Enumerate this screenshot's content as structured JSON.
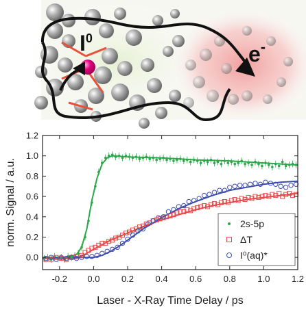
{
  "illustration": {
    "ion_label": "I",
    "ion_superscript": "0",
    "electron_label": "e",
    "electron_superscript": "-",
    "colors": {
      "ion": "#e5007e",
      "bond": "#e8503a",
      "water": "#8a8a8a",
      "electron_glow": "#e88a8a",
      "arrow": "#111111"
    }
  },
  "chart_data": {
    "type": "scatter",
    "xlabel": "Laser - X-Ray Time Delay / ps",
    "ylabel": "norm. Signal / a.u.",
    "xlim": [
      -0.3,
      1.2
    ],
    "ylim": [
      -0.12,
      1.2
    ],
    "xticks": [
      "-0.2",
      "0.0",
      "0.2",
      "0.4",
      "0.6",
      "0.8",
      "1.0",
      "1.2"
    ],
    "xtick_values": [
      -0.2,
      0.0,
      0.2,
      0.4,
      0.6,
      0.8,
      1.0,
      1.2
    ],
    "yticks": [
      "0.0",
      "0.2",
      "0.4",
      "0.6",
      "0.8",
      "1.0",
      "1.2"
    ],
    "ytick_values": [
      0.0,
      0.2,
      0.4,
      0.6,
      0.8,
      1.0,
      1.2
    ],
    "grid": false,
    "legend_position": "bottom-right",
    "series": [
      {
        "name": "2s-5p",
        "marker": "dot",
        "color": "#2aa84a",
        "points": [
          [
            -0.29,
            -0.01
          ],
          [
            -0.27,
            0.0
          ],
          [
            -0.25,
            -0.02
          ],
          [
            -0.23,
            0.01
          ],
          [
            -0.21,
            -0.01
          ],
          [
            -0.19,
            0.0
          ],
          [
            -0.17,
            -0.02
          ],
          [
            -0.15,
            0.01
          ],
          [
            -0.13,
            0.0
          ],
          [
            -0.11,
            0.02
          ],
          [
            -0.09,
            0.04
          ],
          [
            -0.07,
            0.1
          ],
          [
            -0.05,
            0.2
          ],
          [
            -0.03,
            0.36
          ],
          [
            -0.01,
            0.54
          ],
          [
            0.01,
            0.7
          ],
          [
            0.03,
            0.84
          ],
          [
            0.05,
            0.93
          ],
          [
            0.07,
            0.98
          ],
          [
            0.09,
            1.0
          ],
          [
            0.11,
            1.01
          ],
          [
            0.13,
            0.99
          ],
          [
            0.15,
            1.0
          ],
          [
            0.17,
            0.98
          ],
          [
            0.19,
            1.0
          ],
          [
            0.21,
            0.99
          ],
          [
            0.23,
            0.98
          ],
          [
            0.25,
            0.99
          ],
          [
            0.27,
            0.97
          ],
          [
            0.29,
            0.98
          ],
          [
            0.31,
            0.99
          ],
          [
            0.33,
            0.97
          ],
          [
            0.35,
            0.98
          ],
          [
            0.37,
            0.96
          ],
          [
            0.39,
            0.97
          ],
          [
            0.41,
            0.98
          ],
          [
            0.43,
            0.96
          ],
          [
            0.45,
            0.97
          ],
          [
            0.47,
            0.95
          ],
          [
            0.49,
            0.96
          ],
          [
            0.51,
            0.97
          ],
          [
            0.53,
            0.95
          ],
          [
            0.55,
            0.96
          ],
          [
            0.57,
            0.94
          ],
          [
            0.59,
            0.96
          ],
          [
            0.61,
            0.95
          ],
          [
            0.63,
            0.93
          ],
          [
            0.65,
            0.95
          ],
          [
            0.67,
            0.94
          ],
          [
            0.69,
            0.96
          ],
          [
            0.71,
            0.93
          ],
          [
            0.73,
            0.94
          ],
          [
            0.75,
            0.92
          ],
          [
            0.77,
            0.95
          ],
          [
            0.79,
            0.93
          ],
          [
            0.81,
            0.94
          ],
          [
            0.83,
            0.92
          ],
          [
            0.85,
            0.93
          ],
          [
            0.87,
            0.95
          ],
          [
            0.89,
            0.92
          ],
          [
            0.91,
            0.93
          ],
          [
            0.93,
            0.91
          ],
          [
            0.95,
            0.94
          ],
          [
            0.97,
            0.92
          ],
          [
            0.99,
            0.9
          ],
          [
            1.01,
            0.93
          ],
          [
            1.03,
            0.91
          ],
          [
            1.05,
            0.89
          ],
          [
            1.07,
            0.92
          ],
          [
            1.09,
            0.9
          ],
          [
            1.11,
            0.94
          ],
          [
            1.13,
            0.9
          ],
          [
            1.15,
            0.91
          ],
          [
            1.17,
            0.92
          ],
          [
            1.19,
            0.91
          ]
        ],
        "fit": [
          [
            -0.3,
            0.0
          ],
          [
            -0.15,
            0.0
          ],
          [
            -0.1,
            0.03
          ],
          [
            -0.07,
            0.1
          ],
          [
            -0.04,
            0.28
          ],
          [
            -0.01,
            0.56
          ],
          [
            0.02,
            0.78
          ],
          [
            0.05,
            0.92
          ],
          [
            0.08,
            0.98
          ],
          [
            0.11,
            1.0
          ],
          [
            0.2,
            0.99
          ],
          [
            0.4,
            0.98
          ],
          [
            0.6,
            0.96
          ],
          [
            0.8,
            0.95
          ],
          [
            1.0,
            0.93
          ],
          [
            1.2,
            0.91
          ]
        ]
      },
      {
        "name": "ΔT",
        "marker": "square",
        "color": "#e84a4a",
        "points": [
          [
            -0.28,
            -0.02
          ],
          [
            -0.25,
            -0.02
          ],
          [
            -0.22,
            0.0
          ],
          [
            -0.19,
            -0.01
          ],
          [
            -0.16,
            -0.02
          ],
          [
            -0.13,
            0.0
          ],
          [
            -0.1,
            0.01
          ],
          [
            -0.07,
            0.02
          ],
          [
            -0.05,
            0.05
          ],
          [
            -0.03,
            0.07
          ],
          [
            -0.01,
            0.09
          ],
          [
            0.01,
            0.1
          ],
          [
            0.03,
            0.12
          ],
          [
            0.05,
            0.14
          ],
          [
            0.07,
            0.14
          ],
          [
            0.09,
            0.16
          ],
          [
            0.11,
            0.17
          ],
          [
            0.13,
            0.19
          ],
          [
            0.15,
            0.2
          ],
          [
            0.17,
            0.22
          ],
          [
            0.19,
            0.24
          ],
          [
            0.21,
            0.25
          ],
          [
            0.23,
            0.27
          ],
          [
            0.25,
            0.28
          ],
          [
            0.27,
            0.3
          ],
          [
            0.29,
            0.31
          ],
          [
            0.31,
            0.33
          ],
          [
            0.33,
            0.34
          ],
          [
            0.35,
            0.36
          ],
          [
            0.37,
            0.37
          ],
          [
            0.39,
            0.38
          ],
          [
            0.41,
            0.39
          ],
          [
            0.43,
            0.4
          ],
          [
            0.45,
            0.41
          ],
          [
            0.47,
            0.42
          ],
          [
            0.49,
            0.44
          ],
          [
            0.51,
            0.45
          ],
          [
            0.53,
            0.45
          ],
          [
            0.55,
            0.47
          ],
          [
            0.57,
            0.46
          ],
          [
            0.59,
            0.48
          ],
          [
            0.61,
            0.49
          ],
          [
            0.63,
            0.5
          ],
          [
            0.65,
            0.51
          ],
          [
            0.67,
            0.5
          ],
          [
            0.69,
            0.52
          ],
          [
            0.71,
            0.53
          ],
          [
            0.73,
            0.52
          ],
          [
            0.75,
            0.54
          ],
          [
            0.77,
            0.55
          ],
          [
            0.79,
            0.54
          ],
          [
            0.81,
            0.56
          ],
          [
            0.83,
            0.57
          ],
          [
            0.85,
            0.56
          ],
          [
            0.87,
            0.58
          ],
          [
            0.89,
            0.57
          ],
          [
            0.91,
            0.59
          ],
          [
            0.93,
            0.58
          ],
          [
            0.95,
            0.6
          ],
          [
            0.97,
            0.59
          ],
          [
            0.99,
            0.6
          ],
          [
            1.01,
            0.61
          ],
          [
            1.03,
            0.6
          ],
          [
            1.05,
            0.62
          ],
          [
            1.07,
            0.61
          ],
          [
            1.09,
            0.63
          ],
          [
            1.11,
            0.6
          ],
          [
            1.13,
            0.62
          ],
          [
            1.15,
            0.63
          ],
          [
            1.17,
            0.61
          ],
          [
            1.19,
            0.62
          ]
        ],
        "fit": [
          [
            -0.3,
            -0.01
          ],
          [
            -0.1,
            -0.01
          ],
          [
            -0.05,
            0.03
          ],
          [
            0.0,
            0.08
          ],
          [
            0.1,
            0.17
          ],
          [
            0.2,
            0.24
          ],
          [
            0.3,
            0.31
          ],
          [
            0.4,
            0.37
          ],
          [
            0.5,
            0.42
          ],
          [
            0.6,
            0.47
          ],
          [
            0.7,
            0.51
          ],
          [
            0.8,
            0.54
          ],
          [
            0.9,
            0.57
          ],
          [
            1.0,
            0.59
          ],
          [
            1.1,
            0.61
          ],
          [
            1.2,
            0.63
          ]
        ]
      },
      {
        "name": "I⁰(aq)*",
        "marker": "circle",
        "color": "#3b4bb0",
        "points": [
          [
            -0.28,
            -0.01
          ],
          [
            -0.25,
            0.0
          ],
          [
            -0.22,
            -0.02
          ],
          [
            -0.19,
            0.0
          ],
          [
            -0.16,
            -0.01
          ],
          [
            -0.13,
            0.0
          ],
          [
            -0.1,
            -0.01
          ],
          [
            -0.07,
            0.0
          ],
          [
            -0.04,
            0.01
          ],
          [
            -0.01,
            0.01
          ],
          [
            0.02,
            0.02
          ],
          [
            0.05,
            0.04
          ],
          [
            0.08,
            0.06
          ],
          [
            0.11,
            0.08
          ],
          [
            0.14,
            0.1
          ],
          [
            0.17,
            0.14
          ],
          [
            0.2,
            0.18
          ],
          [
            0.23,
            0.22
          ],
          [
            0.26,
            0.26
          ],
          [
            0.29,
            0.28
          ],
          [
            0.32,
            0.33
          ],
          [
            0.35,
            0.36
          ],
          [
            0.38,
            0.39
          ],
          [
            0.41,
            0.4
          ],
          [
            0.44,
            0.45
          ],
          [
            0.47,
            0.47
          ],
          [
            0.5,
            0.5
          ],
          [
            0.53,
            0.51
          ],
          [
            0.56,
            0.55
          ],
          [
            0.59,
            0.56
          ],
          [
            0.62,
            0.58
          ],
          [
            0.65,
            0.61
          ],
          [
            0.68,
            0.62
          ],
          [
            0.71,
            0.64
          ],
          [
            0.74,
            0.66
          ],
          [
            0.77,
            0.66
          ],
          [
            0.8,
            0.69
          ],
          [
            0.83,
            0.7
          ],
          [
            0.86,
            0.71
          ],
          [
            0.89,
            0.71
          ],
          [
            0.92,
            0.72
          ],
          [
            0.95,
            0.73
          ],
          [
            0.98,
            0.72
          ],
          [
            1.01,
            0.74
          ],
          [
            1.04,
            0.73
          ],
          [
            1.07,
            0.72
          ],
          [
            1.1,
            0.7
          ],
          [
            1.13,
            0.69
          ],
          [
            1.16,
            0.71
          ],
          [
            1.19,
            0.72
          ]
        ],
        "fit": [
          [
            -0.3,
            0.0
          ],
          [
            0.0,
            0.0
          ],
          [
            0.05,
            0.02
          ],
          [
            0.1,
            0.06
          ],
          [
            0.15,
            0.11
          ],
          [
            0.2,
            0.17
          ],
          [
            0.3,
            0.29
          ],
          [
            0.4,
            0.39
          ],
          [
            0.5,
            0.48
          ],
          [
            0.6,
            0.55
          ],
          [
            0.7,
            0.61
          ],
          [
            0.8,
            0.66
          ],
          [
            0.9,
            0.69
          ],
          [
            1.0,
            0.72
          ],
          [
            1.1,
            0.74
          ],
          [
            1.2,
            0.75
          ]
        ]
      }
    ]
  }
}
